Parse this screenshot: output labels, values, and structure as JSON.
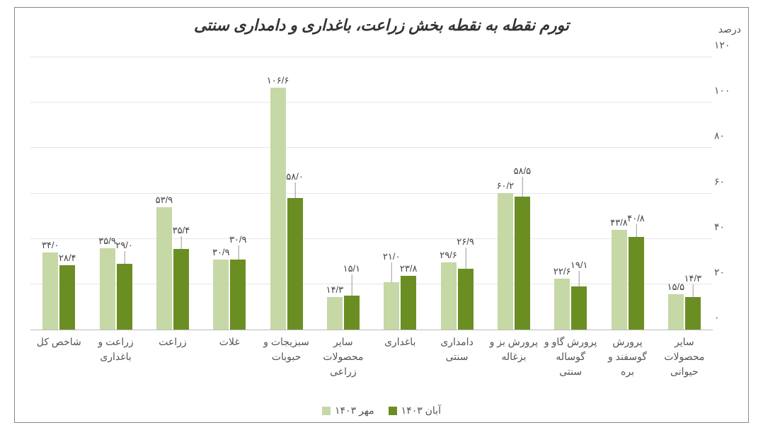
{
  "chart": {
    "type": "bar",
    "title": "تورم نقطه به نقطه بخش زراعت، باغداری و دامداری سنتی",
    "y_axis_label": "درصد",
    "ylim_max": 120,
    "ytick_step": 20,
    "yticks": [
      "۰",
      "۲۰",
      "۴۰",
      "۶۰",
      "۸۰",
      "۱۰۰",
      "۱۲۰"
    ],
    "series": [
      {
        "name": "مهر ۱۴۰۳",
        "color": "#c6d8a6"
      },
      {
        "name": "آبان ۱۴۰۳",
        "color": "#6b8e23"
      }
    ],
    "categories": [
      "شاخص کل",
      "زراعت و باغداری",
      "زراعت",
      "غلات",
      "سبزیجات و حبوبات",
      "سایر محصولات زراعی",
      "باغداری",
      "دامداری سنتی",
      "پرورش بز و بزغاله",
      "پرورش گاو و گوساله سنتی",
      "پرورش گوسفند و بره",
      "سایر محصولات حیوانی"
    ],
    "data": [
      {
        "s1": 34.0,
        "s1_label": "۳۴/۰",
        "s2": 28.4,
        "s2_label": "۲۸/۴"
      },
      {
        "s1": 35.9,
        "s1_label": "۳۵/۹",
        "s2": 29.0,
        "s2_label": "۲۹/۰",
        "s2_offset": 18
      },
      {
        "s1": 53.9,
        "s1_label": "۵۳/۹",
        "s2": 35.4,
        "s2_label": "۳۵/۴",
        "s2_offset": 18
      },
      {
        "s1": 30.9,
        "s1_label": "۳۰/۹",
        "s2": 30.9,
        "s2_label": "۳۰/۹",
        "s2_offset": 20
      },
      {
        "s1": 106.6,
        "s1_label": "۱۰۶/۶",
        "s2": 58.0,
        "s2_label": "۵۸/۰",
        "s2_offset": 22
      },
      {
        "s1": 14.3,
        "s1_label": "۱۴/۳",
        "s2": 15.1,
        "s2_label": "۱۵/۱",
        "s2_offset": 30
      },
      {
        "s1": 21.0,
        "s1_label": "۲۱/۰",
        "s1_offset": 28,
        "s2": 23.8,
        "s2_label": "۲۳/۸"
      },
      {
        "s1": 29.6,
        "s1_label": "۲۹/۶",
        "s2": 26.9,
        "s2_label": "۲۶/۹",
        "s2_offset": 30
      },
      {
        "s1": 60.2,
        "s1_label": "۶۰/۲",
        "s2": 58.5,
        "s2_label": "۵۸/۵",
        "s2_offset": 28
      },
      {
        "s1": 22.6,
        "s1_label": "۲۲/۶",
        "s2": 19.1,
        "s2_label": "۱۹/۱",
        "s2_offset": 22
      },
      {
        "s1": 43.8,
        "s1_label": "۴۳/۸",
        "s2": 40.8,
        "s2_label": "۴۰/۸",
        "s2_offset": 18
      },
      {
        "s1": 15.5,
        "s1_label": "۱۵/۵",
        "s2": 14.3,
        "s2_label": "۱۴/۳",
        "s2_offset": 18
      }
    ],
    "title_fontsize": 22,
    "label_fontsize": 14,
    "background_color": "#ffffff",
    "grid_color": "#e6e6e6",
    "axis_color": "#bbbbbb",
    "text_color": "#555555"
  }
}
